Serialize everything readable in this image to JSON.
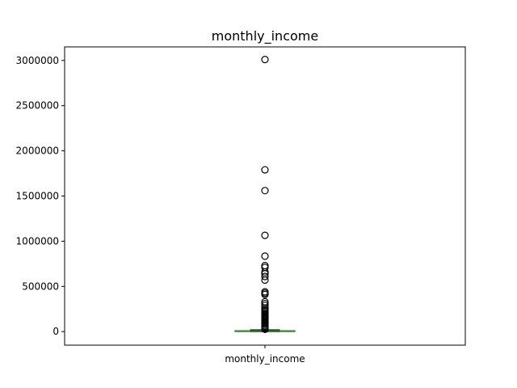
{
  "chart_data": {
    "type": "box",
    "title": "monthly_income",
    "xlabel": "",
    "ylabel": "",
    "categories": [
      "monthly_income"
    ],
    "ylim": [
      -150000,
      3150000
    ],
    "yticks": [
      0,
      500000,
      1000000,
      1500000,
      2000000,
      2500000,
      3000000
    ],
    "ytick_labels": [
      "0",
      "500000",
      "1000000",
      "1500000",
      "2000000",
      "2500000",
      "3000000"
    ],
    "grid": false,
    "box": {
      "q1": 3000,
      "median": 6000,
      "q3": 10000,
      "whisker_low": 0,
      "whisker_high": 20000
    },
    "outliers": [
      3010000,
      1790000,
      1560000,
      1065000,
      835000,
      730000,
      710000,
      660000,
      640000,
      610000,
      570000,
      440000,
      425000,
      410000,
      330000,
      310000,
      290000,
      260000,
      245000,
      230000,
      215000,
      200000,
      185000,
      170000,
      155000,
      140000,
      125000,
      110000,
      95000,
      80000,
      65000,
      50000,
      40000,
      30000,
      25000
    ],
    "colors": {
      "box": "#000000",
      "median": "#2ca02c",
      "flier": "#000000"
    }
  }
}
